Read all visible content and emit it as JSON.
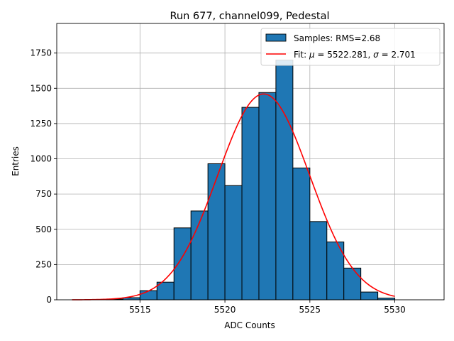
{
  "chart_data": {
    "type": "bar",
    "title": "Run 677, channel099, Pedestal",
    "xlabel": "ADC Counts",
    "ylabel": "Entries",
    "xlim": [
      5510.1,
      5532.9
    ],
    "ylim": [
      0,
      1960
    ],
    "xticks": [
      5515,
      5520,
      5525,
      5530
    ],
    "yticks": [
      0,
      250,
      500,
      750,
      1000,
      1250,
      1500,
      1750
    ],
    "grid": true,
    "legend_position": "top-right",
    "histogram": {
      "name": "Samples: RMS=2.68",
      "color": "#1f77b4",
      "bin_edges": [
        5511,
        5512,
        5513,
        5514,
        5515,
        5516,
        5517,
        5518,
        5519,
        5520,
        5521,
        5522,
        5523,
        5524,
        5525,
        5526,
        5527,
        5528,
        5529,
        5530
      ],
      "counts": [
        0,
        0,
        5,
        15,
        65,
        125,
        510,
        630,
        965,
        810,
        1365,
        1470,
        1700,
        935,
        555,
        410,
        225,
        55,
        12
      ]
    },
    "fit": {
      "name_prefix": "Fit: ",
      "name_mu": "μ",
      "name_eq1": " = 5522.281, ",
      "name_sigma": "σ",
      "name_eq2": " = 2.701",
      "color": "#ff0000",
      "mu": 5522.281,
      "sigma": 2.701,
      "amplitude": 1460,
      "x_range": [
        5511,
        5530
      ]
    }
  }
}
